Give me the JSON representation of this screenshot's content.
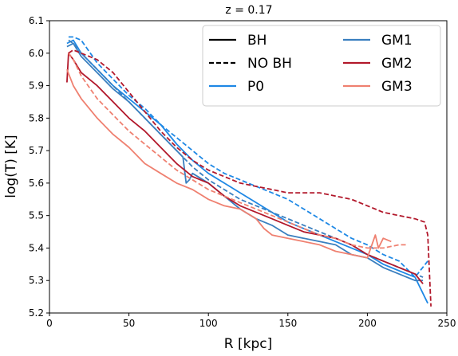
{
  "chart_data": {
    "type": "line",
    "title": "z = 0.17",
    "xlabel": "R [kpc]",
    "ylabel": "log(T) [K]",
    "xlim": [
      0,
      250
    ],
    "ylim": [
      5.2,
      6.1
    ],
    "xticks": [
      "0",
      "50",
      "100",
      "150",
      "200",
      "250"
    ],
    "yticks": [
      "5.2",
      "5.3",
      "5.4",
      "5.5",
      "5.6",
      "5.7",
      "5.8",
      "5.9",
      "6.0",
      "6.1"
    ],
    "grid": false,
    "legend_position": "top-right",
    "legend": {
      "styles": [
        {
          "label": "BH",
          "dash": "solid"
        },
        {
          "label": "NO BH",
          "dash": "dashed"
        }
      ],
      "runs": [
        {
          "label": "P0",
          "color": "#1e88e5"
        },
        {
          "label": "GM1",
          "color": "#3a7fbf"
        },
        {
          "label": "GM2",
          "color": "#b2182b"
        },
        {
          "label": "GM3",
          "color": "#ef8070"
        }
      ]
    },
    "series": [
      {
        "run": "P0",
        "style": "BH",
        "color": "#1e88e5",
        "dash": "solid",
        "x": [
          11,
          15,
          20,
          30,
          40,
          50,
          60,
          70,
          80,
          90,
          100,
          110,
          120,
          130,
          140,
          150,
          160,
          170,
          180,
          190,
          200,
          210,
          220,
          230,
          238
        ],
        "y": [
          6.03,
          6.04,
          6.0,
          5.95,
          5.9,
          5.86,
          5.82,
          5.78,
          5.72,
          5.67,
          5.63,
          5.6,
          5.57,
          5.54,
          5.51,
          5.48,
          5.46,
          5.44,
          5.42,
          5.4,
          5.38,
          5.35,
          5.33,
          5.31,
          5.23
        ]
      },
      {
        "run": "P0",
        "style": "NO BH",
        "color": "#1e88e5",
        "dash": "dashed",
        "x": [
          12,
          15,
          20,
          30,
          40,
          50,
          60,
          70,
          80,
          90,
          100,
          110,
          120,
          130,
          140,
          150,
          160,
          170,
          180,
          190,
          200,
          210,
          220,
          230,
          238
        ],
        "y": [
          6.05,
          6.05,
          6.04,
          5.97,
          5.92,
          5.87,
          5.83,
          5.78,
          5.74,
          5.7,
          5.66,
          5.63,
          5.61,
          5.59,
          5.57,
          5.55,
          5.52,
          5.49,
          5.46,
          5.43,
          5.41,
          5.38,
          5.36,
          5.31,
          5.36
        ]
      },
      {
        "run": "GM1",
        "style": "BH",
        "color": "#3a7fbf",
        "dash": "solid",
        "x": [
          11,
          15,
          20,
          30,
          40,
          50,
          60,
          70,
          80,
          84,
          86,
          88,
          90,
          100,
          110,
          120,
          130,
          140,
          150,
          160,
          170,
          180,
          190,
          200,
          210,
          220,
          230,
          235
        ],
        "y": [
          6.02,
          6.03,
          5.99,
          5.94,
          5.89,
          5.85,
          5.8,
          5.75,
          5.7,
          5.68,
          5.6,
          5.61,
          5.63,
          5.6,
          5.56,
          5.52,
          5.49,
          5.47,
          5.44,
          5.43,
          5.42,
          5.41,
          5.38,
          5.37,
          5.34,
          5.32,
          5.3,
          5.3
        ]
      },
      {
        "run": "GM1",
        "style": "NO BH",
        "color": "#3a7fbf",
        "dash": "dashed",
        "x": [
          12,
          15,
          20,
          30,
          40,
          50,
          60,
          70,
          80,
          90,
          100,
          110,
          120,
          130,
          140,
          150,
          160,
          170,
          180,
          190,
          200,
          210,
          220,
          230,
          235
        ],
        "y": [
          6.04,
          6.03,
          6.0,
          5.95,
          5.9,
          5.85,
          5.8,
          5.75,
          5.7,
          5.65,
          5.61,
          5.58,
          5.55,
          5.53,
          5.51,
          5.49,
          5.47,
          5.45,
          5.43,
          5.41,
          5.38,
          5.36,
          5.34,
          5.32,
          5.31
        ]
      },
      {
        "run": "GM2",
        "style": "BH",
        "color": "#b2182b",
        "dash": "solid",
        "x": [
          11,
          12,
          15,
          20,
          30,
          40,
          50,
          60,
          70,
          80,
          90,
          100,
          110,
          120,
          130,
          140,
          150,
          160,
          170,
          180,
          190,
          200,
          210,
          220,
          230,
          235
        ],
        "y": [
          5.91,
          6.0,
          5.98,
          5.94,
          5.9,
          5.85,
          5.8,
          5.76,
          5.71,
          5.66,
          5.62,
          5.6,
          5.56,
          5.53,
          5.51,
          5.49,
          5.47,
          5.45,
          5.44,
          5.43,
          5.41,
          5.38,
          5.36,
          5.34,
          5.32,
          5.29
        ]
      },
      {
        "run": "GM2",
        "style": "NO BH",
        "color": "#b2182b",
        "dash": "dashed",
        "x": [
          12,
          15,
          20,
          30,
          40,
          50,
          60,
          70,
          80,
          90,
          100,
          110,
          120,
          130,
          140,
          150,
          160,
          170,
          180,
          190,
          200,
          210,
          220,
          230,
          236,
          238,
          240
        ],
        "y": [
          6.0,
          6.01,
          6.0,
          5.98,
          5.94,
          5.88,
          5.82,
          5.76,
          5.71,
          5.67,
          5.64,
          5.62,
          5.6,
          5.59,
          5.58,
          5.57,
          5.57,
          5.57,
          5.56,
          5.55,
          5.53,
          5.51,
          5.5,
          5.49,
          5.48,
          5.44,
          5.22
        ]
      },
      {
        "run": "GM3",
        "style": "BH",
        "color": "#ef8070",
        "dash": "solid",
        "x": [
          11,
          15,
          20,
          30,
          40,
          50,
          60,
          70,
          80,
          90,
          100,
          110,
          120,
          130,
          135,
          140,
          150,
          160,
          170,
          180,
          190,
          200,
          205,
          207,
          210,
          215
        ],
        "y": [
          5.95,
          5.9,
          5.86,
          5.8,
          5.75,
          5.71,
          5.66,
          5.63,
          5.6,
          5.58,
          5.55,
          5.53,
          5.52,
          5.49,
          5.46,
          5.44,
          5.43,
          5.42,
          5.41,
          5.39,
          5.38,
          5.37,
          5.44,
          5.4,
          5.43,
          5.42
        ]
      },
      {
        "run": "GM3",
        "style": "NO BH",
        "color": "#ef8070",
        "dash": "dashed",
        "x": [
          12,
          15,
          20,
          30,
          40,
          50,
          60,
          70,
          80,
          90,
          100,
          110,
          120,
          130,
          140,
          150,
          160,
          170,
          180,
          190,
          200,
          210,
          220,
          225
        ],
        "y": [
          6.0,
          5.98,
          5.93,
          5.86,
          5.81,
          5.76,
          5.72,
          5.68,
          5.64,
          5.61,
          5.58,
          5.56,
          5.54,
          5.52,
          5.5,
          5.48,
          5.46,
          5.44,
          5.43,
          5.41,
          5.4,
          5.4,
          5.41,
          5.41
        ]
      }
    ]
  }
}
